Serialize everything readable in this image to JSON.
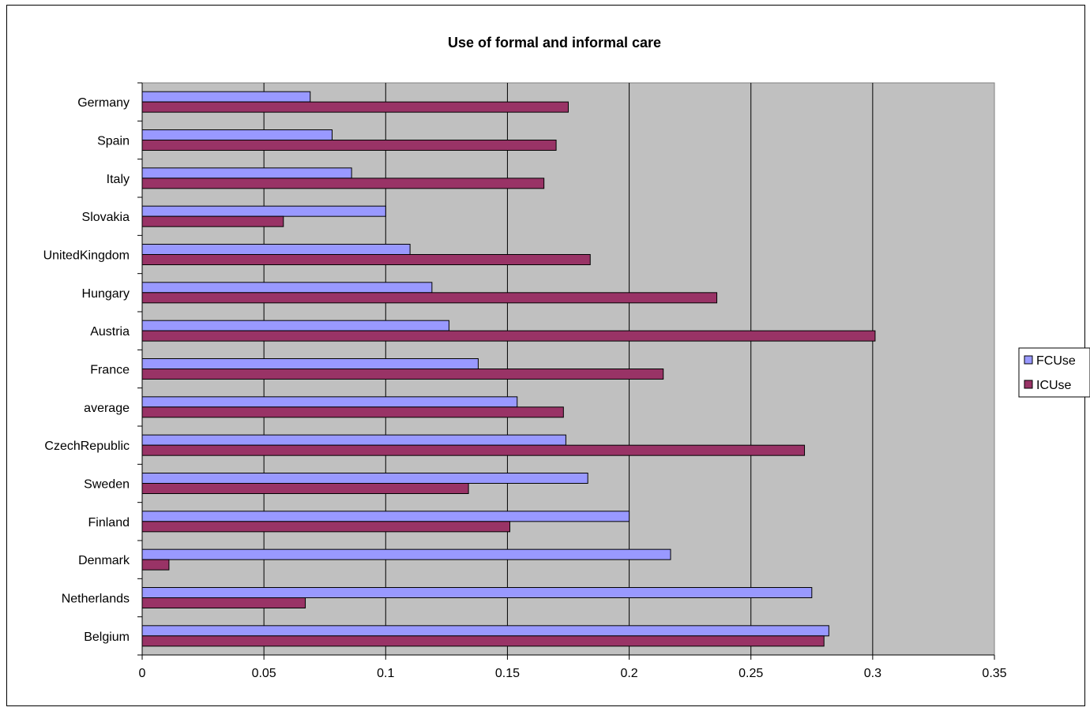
{
  "chart_data": {
    "type": "bar",
    "orientation": "horizontal",
    "title": "Use of formal and informal care",
    "categories": [
      "Belgium",
      "Netherlands",
      "Denmark",
      "Finland",
      "Sweden",
      "CzechRepublic",
      "average",
      "France",
      "Austria",
      "Hungary",
      "UnitedKingdom",
      "Slovakia",
      "Italy",
      "Spain",
      "Germany"
    ],
    "series": [
      {
        "name": "FCUse",
        "color": "#9999ff",
        "values": [
          0.282,
          0.275,
          0.217,
          0.2,
          0.183,
          0.174,
          0.154,
          0.138,
          0.126,
          0.119,
          0.11,
          0.1,
          0.086,
          0.078,
          0.069
        ]
      },
      {
        "name": "ICUse",
        "color": "#993366",
        "values": [
          0.28,
          0.067,
          0.011,
          0.151,
          0.134,
          0.272,
          0.173,
          0.214,
          0.301,
          0.236,
          0.184,
          0.058,
          0.165,
          0.17,
          0.175
        ]
      }
    ],
    "xlim": [
      0,
      0.35
    ],
    "xticks": [
      "0",
      "0.05",
      "0.1",
      "0.15",
      "0.2",
      "0.25",
      "0.3",
      "0.35"
    ],
    "xlabel": "",
    "ylabel": "",
    "plot_background": "#c0c0c0",
    "gridlines": "vertical",
    "legend_position": "right"
  }
}
